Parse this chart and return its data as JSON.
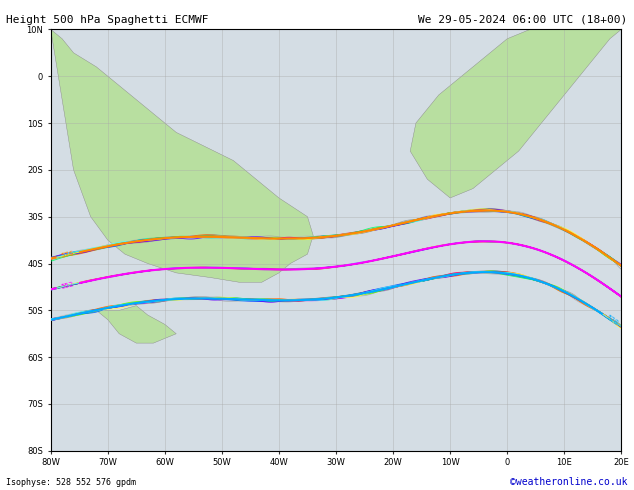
{
  "title_left": "Height 500 hPa Spaghetti ECMWF",
  "title_right": "We 29-05-2024 06:00 UTC (18+00)",
  "subtitle": "Isophyse: 528 552 576 gpdm",
  "credit": "©weatheronline.co.uk",
  "lon_min": -80,
  "lon_max": 20,
  "lat_min": -75,
  "lat_max": 10,
  "ocean_color": "#d4dde4",
  "land_color": "#b8dfa0",
  "grid_color": "#aaaaaa",
  "border_color": "#888888",
  "tick_color": "#333333",
  "font_size_title": 8,
  "font_size_label": 6,
  "font_size_credit": 7,
  "contour_levels": [
    528,
    552,
    576
  ],
  "ensemble_count": 51,
  "ens_colors_gray": [
    "#707070",
    "#787878",
    "#808080",
    "#888888",
    "#909090",
    "#686868",
    "#989898",
    "#606060",
    "#a0a0a0",
    "#585858",
    "#c8c8c8",
    "#b0b0b0",
    "#d0d0d0",
    "#c0c0c0",
    "#a8a8a8",
    "#d8d8d8",
    "#b8b8b8",
    "#989898",
    "#909090",
    "#a0a0a0",
    "#888888"
  ],
  "ens_colors_bright": [
    "#ff00ff",
    "#ffff00",
    "#00ccff",
    "#ff8800",
    "#ff0000",
    "#0000ff",
    "#00cc00",
    "#ff4400",
    "#8800ff",
    "#00ffcc",
    "#ff44aa",
    "#aaff44",
    "#44aaff",
    "#ffaa44",
    "#44ffaa",
    "#aa44ff",
    "#ff4444",
    "#44ff44",
    "#4444ff",
    "#ffcc00",
    "#00ffcc",
    "#cc00ff",
    "#ff0066",
    "#66ff00",
    "#0066ff",
    "#ff6600",
    "#00ff66",
    "#6600ff",
    "#ffff44",
    "#44ffff"
  ]
}
